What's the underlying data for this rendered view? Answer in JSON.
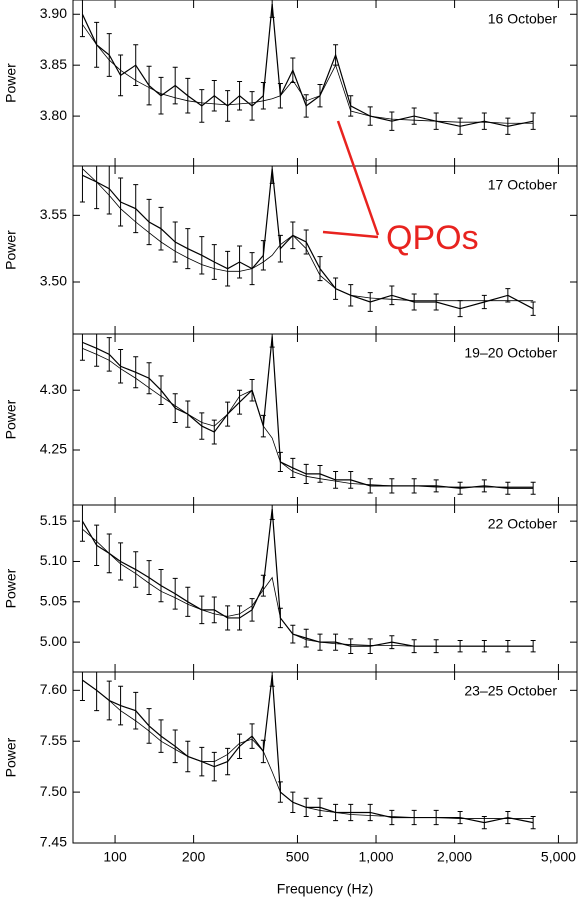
{
  "chart_data": [
    {
      "type": "errorbar",
      "title": "16 October",
      "ylabel": "Power",
      "xscale": "log",
      "xlim": [
        69,
        5890
      ],
      "xticks": [
        100,
        200,
        500,
        {
          "value": 1000,
          "label": "1,000"
        },
        {
          "value": 2000,
          "label": "2,000"
        },
        {
          "value": 5000,
          "label": "5,000"
        }
      ],
      "ylim": [
        3.751,
        3.914
      ],
      "yticks": [
        {
          "value": 3.8,
          "label": "3.80"
        },
        3.85,
        {
          "value": 3.9,
          "label": "3.90"
        }
      ],
      "color": "#000000",
      "x": [
        75,
        85,
        95,
        105,
        120,
        135,
        150,
        170,
        190,
        215,
        240,
        270,
        300,
        335,
        370,
        400,
        430,
        480,
        540,
        610,
        700,
        800,
        950,
        1150,
        1400,
        1700,
        2100,
        2600,
        3200,
        4000
      ],
      "values": [
        3.9,
        3.87,
        3.86,
        3.84,
        3.85,
        3.83,
        3.82,
        3.83,
        3.82,
        3.81,
        3.82,
        3.81,
        3.82,
        3.81,
        3.82,
        3.91,
        3.82,
        3.845,
        3.81,
        3.82,
        3.86,
        3.81,
        3.8,
        3.795,
        3.8,
        3.795,
        3.79,
        3.795,
        3.79,
        3.795
      ],
      "errors": [
        0.022,
        0.022,
        0.021,
        0.02,
        0.02,
        0.019,
        0.018,
        0.018,
        0.017,
        0.016,
        0.015,
        0.015,
        0.014,
        0.014,
        0.013,
        0.013,
        0.012,
        0.012,
        0.011,
        0.011,
        0.01,
        0.01,
        0.009,
        0.009,
        0.008,
        0.008,
        0.008,
        0.008,
        0.008,
        0.008
      ],
      "model": [
        3.89,
        3.87,
        3.855,
        3.845,
        3.835,
        3.828,
        3.822,
        3.818,
        3.815,
        3.813,
        3.812,
        3.811,
        3.812,
        3.813,
        3.815,
        3.817,
        3.82,
        3.835,
        3.815,
        3.82,
        3.85,
        3.805,
        3.8,
        3.797,
        3.796,
        3.795,
        3.794,
        3.794,
        3.793,
        3.793
      ]
    },
    {
      "type": "errorbar",
      "title": "17 October",
      "ylabel": "Power",
      "xscale": "log",
      "xlim": [
        69,
        5890
      ],
      "xticks": [
        100,
        200,
        500,
        {
          "value": 1000,
          "label": "1,000"
        },
        {
          "value": 2000,
          "label": "2,000"
        },
        {
          "value": 5000,
          "label": "5,000"
        }
      ],
      "ylim": [
        3.461,
        3.587
      ],
      "yticks": [
        {
          "value": 3.5,
          "label": "3.50"
        },
        3.55
      ],
      "color": "#000000",
      "annotation": "QPOs",
      "x": [
        75,
        85,
        95,
        105,
        120,
        135,
        150,
        170,
        190,
        215,
        240,
        270,
        300,
        335,
        370,
        400,
        430,
        480,
        540,
        610,
        700,
        800,
        950,
        1150,
        1400,
        1700,
        2100,
        2600,
        3200,
        4000
      ],
      "values": [
        3.58,
        3.575,
        3.57,
        3.56,
        3.555,
        3.545,
        3.54,
        3.53,
        3.525,
        3.52,
        3.515,
        3.51,
        3.515,
        3.51,
        3.52,
        3.585,
        3.525,
        3.535,
        3.53,
        3.51,
        3.495,
        3.49,
        3.485,
        3.49,
        3.485,
        3.485,
        3.48,
        3.485,
        3.49,
        3.48
      ],
      "errors": [
        0.02,
        0.02,
        0.019,
        0.018,
        0.018,
        0.017,
        0.016,
        0.015,
        0.015,
        0.014,
        0.013,
        0.013,
        0.012,
        0.012,
        0.011,
        0.011,
        0.01,
        0.01,
        0.009,
        0.009,
        0.008,
        0.008,
        0.007,
        0.007,
        0.006,
        0.006,
        0.006,
        0.005,
        0.005,
        0.005
      ],
      "model": [
        3.585,
        3.575,
        3.565,
        3.555,
        3.545,
        3.537,
        3.53,
        3.523,
        3.518,
        3.513,
        3.51,
        3.508,
        3.508,
        3.51,
        3.515,
        3.52,
        3.528,
        3.535,
        3.525,
        3.505,
        3.495,
        3.49,
        3.488,
        3.487,
        3.486,
        3.486,
        3.486,
        3.486,
        3.486,
        3.486
      ]
    },
    {
      "type": "errorbar",
      "title": "19–20 October",
      "ylabel": "Power",
      "xscale": "log",
      "xlim": [
        69,
        5890
      ],
      "xticks": [
        100,
        200,
        500,
        {
          "value": 1000,
          "label": "1,000"
        },
        {
          "value": 2000,
          "label": "2,000"
        },
        {
          "value": 5000,
          "label": "5,000"
        }
      ],
      "ylim": [
        4.204,
        4.347
      ],
      "yticks": [
        4.25,
        {
          "value": 4.3,
          "label": "4.30"
        }
      ],
      "color": "#000000",
      "x": [
        75,
        85,
        95,
        105,
        120,
        135,
        150,
        170,
        190,
        215,
        240,
        270,
        300,
        335,
        370,
        400,
        430,
        480,
        540,
        610,
        700,
        800,
        950,
        1150,
        1400,
        1700,
        2100,
        2600,
        3200,
        4000
      ],
      "values": [
        4.34,
        4.335,
        4.33,
        4.32,
        4.315,
        4.31,
        4.3,
        4.285,
        4.28,
        4.27,
        4.265,
        4.28,
        4.29,
        4.3,
        4.27,
        4.345,
        4.24,
        4.235,
        4.23,
        4.23,
        4.225,
        4.225,
        4.22,
        4.22,
        4.22,
        4.22,
        4.218,
        4.22,
        4.218,
        4.218
      ],
      "errors": [
        0.015,
        0.015,
        0.014,
        0.014,
        0.013,
        0.013,
        0.012,
        0.012,
        0.011,
        0.011,
        0.01,
        0.01,
        0.01,
        0.009,
        0.009,
        0.009,
        0.008,
        0.008,
        0.008,
        0.007,
        0.007,
        0.007,
        0.006,
        0.006,
        0.006,
        0.005,
        0.005,
        0.005,
        0.005,
        0.005
      ],
      "model": [
        4.335,
        4.33,
        4.325,
        4.318,
        4.31,
        4.302,
        4.295,
        4.287,
        4.28,
        4.273,
        4.27,
        4.28,
        4.295,
        4.3,
        4.27,
        4.26,
        4.24,
        4.232,
        4.228,
        4.226,
        4.224,
        4.222,
        4.221,
        4.22,
        4.22,
        4.219,
        4.219,
        4.219,
        4.219,
        4.219
      ]
    },
    {
      "type": "errorbar",
      "title": "22 October",
      "ylabel": "Power",
      "xscale": "log",
      "xlim": [
        69,
        5890
      ],
      "xticks": [
        100,
        200,
        500,
        {
          "value": 1000,
          "label": "1,000"
        },
        {
          "value": 2000,
          "label": "2,000"
        },
        {
          "value": 5000,
          "label": "5,000"
        }
      ],
      "ylim": [
        4.963,
        5.17
      ],
      "yticks": [
        {
          "value": 5,
          "label": "5.00"
        },
        5.05,
        {
          "value": 5.1,
          "label": "5.10"
        },
        5.15
      ],
      "color": "#000000",
      "x": [
        75,
        85,
        95,
        105,
        120,
        135,
        150,
        170,
        190,
        215,
        240,
        270,
        300,
        335,
        370,
        400,
        430,
        480,
        540,
        610,
        700,
        800,
        950,
        1150,
        1400,
        1700,
        2100,
        2600,
        3200,
        4000
      ],
      "values": [
        5.15,
        5.12,
        5.11,
        5.1,
        5.09,
        5.08,
        5.07,
        5.06,
        5.05,
        5.04,
        5.04,
        5.03,
        5.03,
        5.04,
        5.07,
        5.165,
        5.03,
        5.01,
        5.005,
        5.0,
        5.0,
        4.995,
        4.995,
        5.0,
        4.995,
        4.995,
        4.995,
        4.995,
        4.995,
        4.995
      ],
      "errors": [
        0.025,
        0.025,
        0.024,
        0.023,
        0.022,
        0.021,
        0.02,
        0.019,
        0.018,
        0.017,
        0.016,
        0.015,
        0.015,
        0.014,
        0.013,
        0.013,
        0.012,
        0.011,
        0.011,
        0.01,
        0.01,
        0.009,
        0.009,
        0.008,
        0.008,
        0.008,
        0.007,
        0.007,
        0.007,
        0.007
      ],
      "model": [
        5.14,
        5.125,
        5.11,
        5.097,
        5.085,
        5.073,
        5.063,
        5.055,
        5.047,
        5.04,
        5.035,
        5.032,
        5.035,
        5.045,
        5.065,
        5.08,
        5.03,
        5.01,
        5.003,
        5.0,
        4.998,
        4.997,
        4.996,
        4.996,
        4.995,
        4.995,
        4.995,
        4.995,
        4.995,
        4.995
      ]
    },
    {
      "type": "errorbar",
      "title": "23–25 October",
      "ylabel": "Power",
      "xlabel": "Frequency (Hz)",
      "xscale": "log",
      "xlim": [
        69,
        5890
      ],
      "xticks": [
        100,
        200,
        500,
        {
          "value": 1000,
          "label": "1,000"
        },
        {
          "value": 2000,
          "label": "2,000"
        },
        {
          "value": 5000,
          "label": "5,000"
        }
      ],
      "ylim": [
        7.45,
        7.618
      ],
      "yticks": [
        {
          "value": 7.45,
          "label": "7.45"
        },
        {
          "value": 7.5,
          "label": "7.50"
        },
        7.55,
        {
          "value": 7.6,
          "label": "7.60"
        }
      ],
      "color": "#000000",
      "x": [
        75,
        85,
        95,
        105,
        120,
        135,
        150,
        170,
        190,
        215,
        240,
        270,
        300,
        335,
        370,
        400,
        430,
        480,
        540,
        610,
        700,
        800,
        950,
        1150,
        1400,
        1700,
        2100,
        2600,
        3200,
        4000
      ],
      "values": [
        7.61,
        7.6,
        7.59,
        7.585,
        7.58,
        7.565,
        7.555,
        7.545,
        7.535,
        7.53,
        7.525,
        7.53,
        7.545,
        7.555,
        7.54,
        7.615,
        7.5,
        7.49,
        7.485,
        7.485,
        7.48,
        7.48,
        7.48,
        7.475,
        7.475,
        7.475,
        7.475,
        7.47,
        7.475,
        7.47
      ],
      "errors": [
        0.02,
        0.02,
        0.019,
        0.019,
        0.018,
        0.017,
        0.016,
        0.016,
        0.015,
        0.014,
        0.014,
        0.013,
        0.012,
        0.012,
        0.011,
        0.011,
        0.01,
        0.01,
        0.009,
        0.009,
        0.008,
        0.008,
        0.008,
        0.007,
        0.007,
        0.007,
        0.006,
        0.006,
        0.006,
        0.006
      ],
      "model": [
        7.61,
        7.6,
        7.59,
        7.58,
        7.57,
        7.56,
        7.55,
        7.542,
        7.535,
        7.53,
        7.53,
        7.537,
        7.548,
        7.552,
        7.54,
        7.52,
        7.5,
        7.49,
        7.485,
        7.482,
        7.48,
        7.478,
        7.477,
        7.476,
        7.475,
        7.475,
        7.474,
        7.474,
        7.474,
        7.474
      ]
    }
  ]
}
